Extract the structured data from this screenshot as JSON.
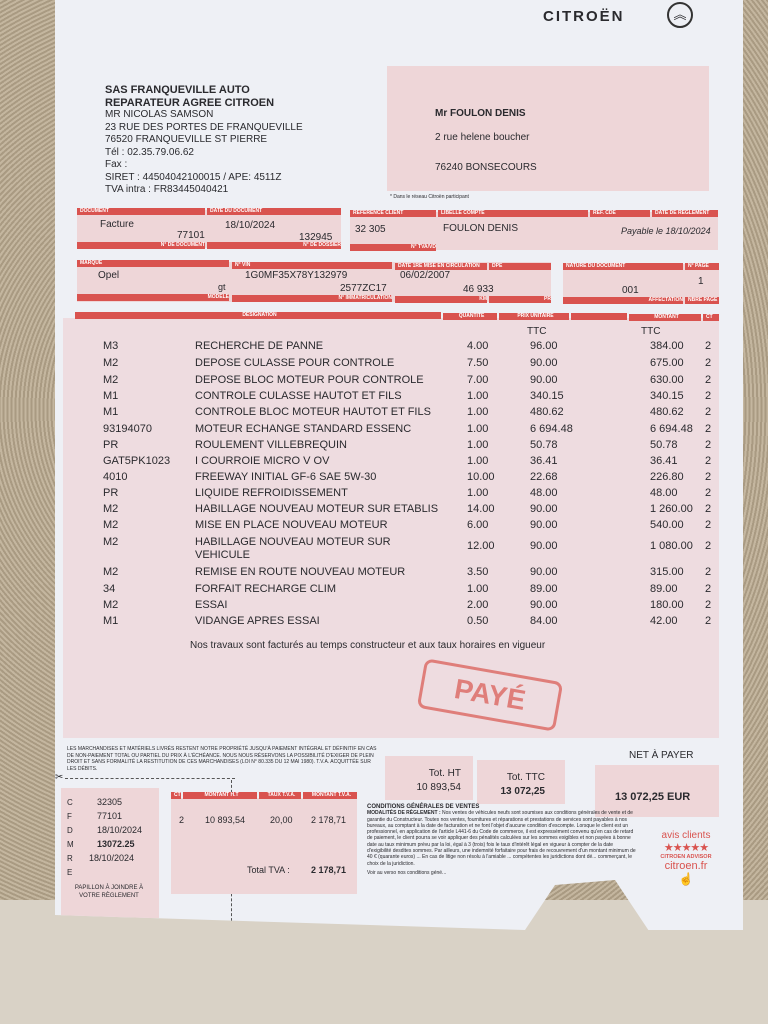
{
  "brand": {
    "name": "CITROËN",
    "accent": "#d9534f"
  },
  "garage": {
    "name": "SAS FRANQUEVILLE AUTO",
    "subtitle": "REPARATEUR AGREE CITROEN",
    "contact": "MR NICOLAS SAMSON",
    "address1": "23 RUE DES PORTES DE FRANQUEVILLE",
    "address2": "76520 FRANQUEVILLE ST PIERRE",
    "tel": "Tél : 02.35.79.06.62",
    "fax": "Fax :",
    "siret": "SIRET : 44504042100015   / APE: 4511Z",
    "tva": "TVA intra : FR83445040421"
  },
  "client": {
    "name": "Mr FOULON DENIS",
    "address1": "2 rue helene boucher",
    "address2": "76240 BONSECOURS",
    "note": "* Dans le réseau Citroën participant"
  },
  "doc_header": {
    "labels": [
      "Document",
      "Date du document",
      "Référence client",
      "Libellé compte",
      "Réf. CDE",
      "Date de règlement",
      "N° de document",
      "N° de dossier",
      "N° TVA/VD"
    ],
    "document": "Facture",
    "date": "18/10/2024",
    "doc_no": "77101",
    "dossier": "132945",
    "ref_client": "32 305",
    "libelle": "FOULON DENIS",
    "reglement": "Payable le 18/10/2024"
  },
  "vehicle": {
    "labels": [
      "Marque",
      "N° VIN",
      "Date 1re mise en circulation",
      "DPE",
      "Nature du document",
      "N° page",
      "Modèle",
      "N° immatriculation",
      "Km",
      "PR",
      "Affectation",
      "Nbre page"
    ],
    "marque": "Opel",
    "modele": "gt",
    "vin": "1G0MF35X78Y132979",
    "immat": "2577ZC17",
    "date_mec": "06/02/2007",
    "km": "46 933",
    "affectation": "001",
    "page": "1"
  },
  "lines_header": {
    "designation": "Désignation",
    "quantite": "Quantité",
    "pu": "Prix unitaire",
    "montant": "Montant",
    "ct": "CT",
    "ttc1": "TTC",
    "ttc2": "TTC"
  },
  "lines": [
    {
      "code": "M3",
      "designation": "RECHERCHE DE PANNE",
      "qty": "4.00",
      "pu": "96.00",
      "montant": "384.00",
      "ct": "2"
    },
    {
      "code": "M2",
      "designation": "DEPOSE CULASSE POUR CONTROLE",
      "qty": "7.50",
      "pu": "90.00",
      "montant": "675.00",
      "ct": "2"
    },
    {
      "code": "M2",
      "designation": "DEPOSE BLOC MOTEUR POUR CONTROLE",
      "qty": "7.00",
      "pu": "90.00",
      "montant": "630.00",
      "ct": "2"
    },
    {
      "code": "M1",
      "designation": "CONTROLE CULASSE HAUTOT ET FILS",
      "qty": "1.00",
      "pu": "340.15",
      "montant": "340.15",
      "ct": "2"
    },
    {
      "code": "M1",
      "designation": "CONTROLE BLOC MOTEUR HAUTOT ET FILS",
      "qty": "1.00",
      "pu": "480.62",
      "montant": "480.62",
      "ct": "2"
    },
    {
      "code": "93194070",
      "designation": "MOTEUR ECHANGE STANDARD ESSENC",
      "qty": "1.00",
      "pu": "6 694.48",
      "montant": "6 694.48",
      "ct": "2"
    },
    {
      "code": "PR",
      "designation": "ROULEMENT VILLEBREQUIN",
      "qty": "1.00",
      "pu": "50.78",
      "montant": "50.78",
      "ct": "2"
    },
    {
      "code": "GAT5PK1023",
      "designation": "I COURROIE MICRO V OV",
      "qty": "1.00",
      "pu": "36.41",
      "montant": "36.41",
      "ct": "2"
    },
    {
      "code": "4010",
      "designation": "FREEWAY INITIAL GF-6 SAE 5W-30",
      "qty": "10.00",
      "pu": "22.68",
      "montant": "226.80",
      "ct": "2"
    },
    {
      "code": "PR",
      "designation": "LIQUIDE REFROIDISSEMENT",
      "qty": "1.00",
      "pu": "48.00",
      "montant": "48.00",
      "ct": "2"
    },
    {
      "code": "M2",
      "designation": "HABILLAGE NOUVEAU MOTEUR SUR ETABLIS",
      "qty": "14.00",
      "pu": "90.00",
      "montant": "1 260.00",
      "ct": "2"
    },
    {
      "code": "M2",
      "designation": "MISE EN PLACE NOUVEAU MOTEUR",
      "qty": "6.00",
      "pu": "90.00",
      "montant": "540.00",
      "ct": "2"
    },
    {
      "code": "M2",
      "designation": "HABILLAGE NOUVEAU MOTEUR SUR VEHICULE",
      "qty": "12.00",
      "pu": "90.00",
      "montant": "1 080.00",
      "ct": "2"
    },
    {
      "code": "M2",
      "designation": "REMISE EN ROUTE NOUVEAU MOTEUR",
      "qty": "3.50",
      "pu": "90.00",
      "montant": "315.00",
      "ct": "2"
    },
    {
      "code": "34",
      "designation": "FORFAIT RECHARGE CLIM",
      "qty": "1.00",
      "pu": "89.00",
      "montant": "89.00",
      "ct": "2"
    },
    {
      "code": "M2",
      "designation": "ESSAI",
      "qty": "2.00",
      "pu": "90.00",
      "montant": "180.00",
      "ct": "2"
    },
    {
      "code": "M1",
      "designation": "VIDANGE APRES ESSAI",
      "qty": "0.50",
      "pu": "84.00",
      "montant": "42.00",
      "ct": "2"
    }
  ],
  "note": "Nos travaux sont facturés au temps constructeur et aux taux horaires en vigueur",
  "stamp": "PAYÉ",
  "legal": "Les marchandises et matériels livrés restent notre propriété jusqu'à paiement intégral et définitif en cas de non-paiement total ou partiel du prix à l'échéance. Nous nous réservons la possibilité d'exiger de plein droit et sans formalité la restitution de ces marchandises (loi n° 80.335 du 12 mai 1980). T.V.A. acquittée sur les débits.",
  "totals": {
    "ht_label": "Tot. HT",
    "ht": "10 893,54",
    "ttc_label": "Tot. TTC",
    "ttc": "13 072,25",
    "net_label": "NET À PAYER",
    "net": "13 072,25 EUR"
  },
  "tva_table": {
    "headers": [
      "CT",
      "Montant H.T",
      "Taux T.V.A.",
      "Montant T.V.A."
    ],
    "row": [
      "2",
      "10 893,54",
      "20,00",
      "2 178,71"
    ],
    "total_label": "Total TVA :",
    "total": "2 178,71"
  },
  "stub": {
    "letters": [
      "C",
      "F",
      "D",
      "M",
      "R",
      "E"
    ],
    "values": [
      "32305",
      "77101",
      "18/10/2024",
      "13072.25",
      "18/10/2024"
    ],
    "caption": "PAPILLON À JOINDRE À VOTRE RÈGLEMENT"
  },
  "conditions": {
    "title1": "CONDITIONS GÉNÉRALES DE VENTES",
    "title2": "MODALITÉS DE RÈGLEMENT :",
    "text": "Nos ventes de véhicules neufs sont soumises aux conditions générales de vente et de garantie du Constructeur. Toutes nos ventes, fournitures et réparations et prestations de services sont payables à nos bureaux, au comptant à la date de facturation et ne font l'objet d'aucune condition d'escompte. Lorsque le client est un professionnel, en application de l'article L441-6 du Code de commerce, il est expressément convenu qu'en cas de retard de paiement, le client pourra se voir appliquer des pénalités calculées sur les sommes exigibles et non payées à bonne date au taux minimum prévu par la loi, égal à 3 (trois) fois le taux d'intérêt légal en vigueur à compter de la date d'exigibilité desdites sommes. Par ailleurs, une indemnité forfaitaire pour frais de recouvrement d'un montant minimum de 40 € (quarante euros) ... En cas de litige non résolu à l'amiable ... compétentes les juridictions dont dé... commerçant, le choix de la juridiction.",
    "footer": "Voir au verso nos conditions géné..."
  },
  "advisor": {
    "line1": "avis clients",
    "line2": "CITROEN ADVISOR",
    "site": "citroen.fr",
    "stars": 5
  }
}
